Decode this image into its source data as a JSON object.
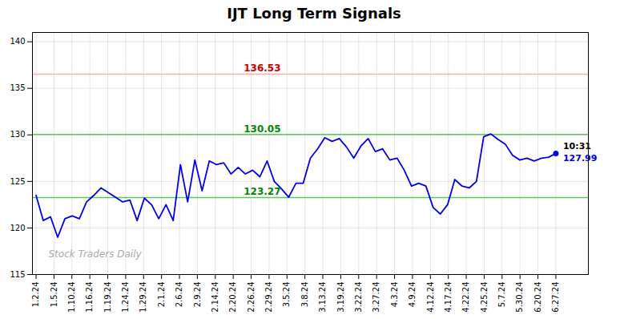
{
  "chart_data": {
    "type": "line",
    "title": "IJT Long Term Signals",
    "x": [
      0,
      1,
      2,
      3,
      4,
      5,
      6,
      7,
      8,
      9,
      10,
      11,
      12,
      13,
      14,
      15,
      16,
      17,
      18,
      19,
      20,
      21,
      22,
      23,
      24,
      25,
      26,
      27,
      28,
      29,
      30,
      31,
      32,
      33,
      34,
      35,
      36,
      37,
      38,
      39,
      40,
      41,
      42,
      43,
      44,
      45,
      46,
      47,
      48,
      49,
      50,
      51,
      52,
      53,
      54,
      55,
      56,
      57,
      58,
      59,
      60,
      61,
      62,
      63,
      64,
      65,
      66,
      67,
      68,
      69,
      70,
      71,
      72
    ],
    "values": [
      123.5,
      120.8,
      121.2,
      119.0,
      121.0,
      121.3,
      121.0,
      122.8,
      123.5,
      124.3,
      123.8,
      123.3,
      122.8,
      123.0,
      120.8,
      123.2,
      122.5,
      121.0,
      122.5,
      120.8,
      126.8,
      122.8,
      127.3,
      124.0,
      127.2,
      126.8,
      127.0,
      125.8,
      126.5,
      125.8,
      126.2,
      125.5,
      127.2,
      125.0,
      124.2,
      123.3,
      124.8,
      124.8,
      127.5,
      128.5,
      129.7,
      129.3,
      129.6,
      128.7,
      127.5,
      128.8,
      129.6,
      128.2,
      128.5,
      127.3,
      127.5,
      126.2,
      124.5,
      124.8,
      124.5,
      122.2,
      121.5,
      122.5,
      125.2,
      124.5,
      124.3,
      125.0,
      129.8,
      130.1,
      129.5,
      129.0,
      127.8,
      127.3,
      127.5,
      127.2,
      127.5,
      127.6,
      127.99
    ],
    "color": "#0000ee",
    "xlim": [
      -0.5,
      76.5
    ],
    "xticks": [
      {
        "value": 0,
        "label": "1.2.24"
      },
      {
        "value": 2.4827586207,
        "label": "1.5.24"
      },
      {
        "value": 4.9655172414,
        "label": "1.10.24"
      },
      {
        "value": 7.4482758621,
        "label": "1.16.24"
      },
      {
        "value": 9.9310344828,
        "label": "1.19.24"
      },
      {
        "value": 12.4137931034,
        "label": "1.24.24"
      },
      {
        "value": 14.8965517241,
        "label": "1.29.24"
      },
      {
        "value": 17.3793103448,
        "label": "2.1.24"
      },
      {
        "value": 19.8620689655,
        "label": "2.6.24"
      },
      {
        "value": 22.3448275862,
        "label": "2.9.24"
      },
      {
        "value": 24.8275862069,
        "label": "2.14.24"
      },
      {
        "value": 27.3103448276,
        "label": "2.20.24"
      },
      {
        "value": 29.7931034483,
        "label": "2.26.24"
      },
      {
        "value": 32.275862069,
        "label": "2.29.24"
      },
      {
        "value": 34.7586206897,
        "label": "3.5.24"
      },
      {
        "value": 37.2413793103,
        "label": "3.8.24"
      },
      {
        "value": 39.724137931,
        "label": "3.13.24"
      },
      {
        "value": 42.2068965517,
        "label": "3.19.24"
      },
      {
        "value": 44.6896551724,
        "label": "3.22.24"
      },
      {
        "value": 47.1724137931,
        "label": "3.27.24"
      },
      {
        "value": 49.6551724138,
        "label": "4.3.24"
      },
      {
        "value": 52.1379310345,
        "label": "4.9.24"
      },
      {
        "value": 54.6206896552,
        "label": "4.12.24"
      },
      {
        "value": 57.1034482759,
        "label": "4.17.24"
      },
      {
        "value": 59.5862068966,
        "label": "4.22.24"
      },
      {
        "value": 62.0689655172,
        "label": "4.25.24"
      },
      {
        "value": 64.5517241379,
        "label": "5.7.24"
      },
      {
        "value": 67.0344827586,
        "label": "5.30.24"
      },
      {
        "value": 69.5172413793,
        "label": "6.20.24"
      },
      {
        "value": 72,
        "label": "6.27.24"
      }
    ],
    "ylim": [
      115,
      141
    ],
    "yticks": [
      115,
      120,
      125,
      130,
      135,
      140
    ],
    "grid": true,
    "reference_lines": [
      {
        "y": 136.53,
        "label": "136.53",
        "color": "#ffaaaa",
        "label_color": "#cc0000"
      },
      {
        "y": 130.05,
        "label": "130.05",
        "color": "#55cc55",
        "label_color": "#008800"
      },
      {
        "y": 123.27,
        "label": "123.27",
        "color": "#55cc55",
        "label_color": "#008800"
      }
    ],
    "annotations": [
      {
        "text": "10:31",
        "x": 72,
        "y": 127.99
      },
      {
        "text": "127.99",
        "x": 72,
        "y": 127.99,
        "color": "#0000ee"
      },
      {
        "text": "Stock Traders Daily",
        "color": "#aaaaaa"
      }
    ]
  }
}
